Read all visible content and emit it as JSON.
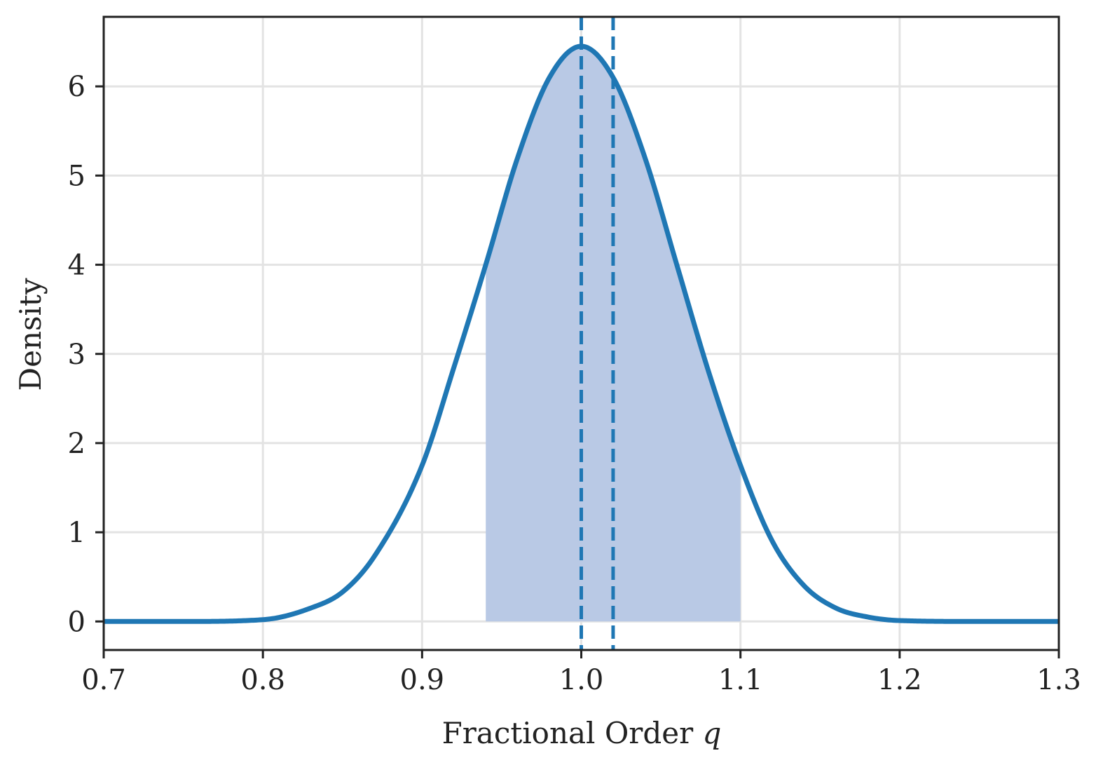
{
  "chart_data": {
    "type": "line",
    "title": "",
    "xlabel": "Fractional Order",
    "xlabel_symbol": "q",
    "ylabel": "Density",
    "xlim": [
      0.7,
      1.3
    ],
    "ylim": [
      -0.32,
      6.78
    ],
    "grid": true,
    "x_ticks": [
      0.7,
      0.8,
      0.9,
      1.0,
      1.1,
      1.2,
      1.3
    ],
    "x_tick_labels": [
      "0.7",
      "0.8",
      "0.9",
      "1.0",
      "1.1",
      "1.2",
      "1.3"
    ],
    "y_ticks": [
      0,
      1,
      2,
      3,
      4,
      5,
      6
    ],
    "y_tick_labels": [
      "0",
      "1",
      "2",
      "3",
      "4",
      "5",
      "6"
    ],
    "series": [
      {
        "x": [
          0.7,
          0.75,
          0.8,
          0.83,
          0.85,
          0.87,
          0.9,
          0.92,
          0.94,
          0.96,
          0.98,
          1.0,
          1.02,
          1.04,
          1.06,
          1.08,
          1.1,
          1.12,
          1.14,
          1.16,
          1.18,
          1.2,
          1.25,
          1.3
        ],
        "y": [
          0.0,
          0.0,
          0.02,
          0.15,
          0.33,
          0.73,
          1.75,
          2.85,
          4.0,
          5.2,
          6.1,
          6.45,
          6.1,
          5.2,
          4.0,
          2.8,
          1.75,
          0.9,
          0.4,
          0.15,
          0.05,
          0.01,
          0.0,
          0.0
        ],
        "color": "#1f77b4"
      }
    ],
    "shaded_interval": {
      "from": 0.94,
      "to": 1.1,
      "color": "#b9c9e5"
    },
    "vertical_lines": [
      {
        "x": 1.0,
        "style": "dashed",
        "color": "#1f77b4"
      },
      {
        "x": 1.02,
        "style": "dashed",
        "color": "#1f77b4"
      }
    ]
  }
}
